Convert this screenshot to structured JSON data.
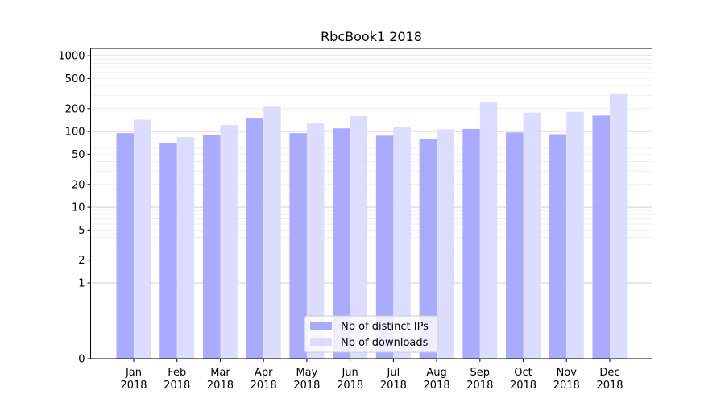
{
  "chart_data": {
    "type": "bar",
    "title": "RbcBook1 2018",
    "xlabel": "",
    "ylabel": "",
    "yscale": "symlog",
    "ylim": [
      0,
      1250
    ],
    "yticks": [
      0,
      1,
      2,
      5,
      10,
      20,
      50,
      100,
      200,
      500,
      1000
    ],
    "ytick_labels": [
      "0",
      "1",
      "2",
      "5",
      "10",
      "20",
      "50",
      "100",
      "200",
      "500",
      "1000"
    ],
    "categories": [
      {
        "month": "Jan",
        "year": "2018"
      },
      {
        "month": "Feb",
        "year": "2018"
      },
      {
        "month": "Mar",
        "year": "2018"
      },
      {
        "month": "Apr",
        "year": "2018"
      },
      {
        "month": "May",
        "year": "2018"
      },
      {
        "month": "Jun",
        "year": "2018"
      },
      {
        "month": "Jul",
        "year": "2018"
      },
      {
        "month": "Aug",
        "year": "2018"
      },
      {
        "month": "Sep",
        "year": "2018"
      },
      {
        "month": "Oct",
        "year": "2018"
      },
      {
        "month": "Nov",
        "year": "2018"
      },
      {
        "month": "Dec",
        "year": "2018"
      }
    ],
    "series": [
      {
        "name": "Nb of distinct IPs",
        "color": "#aaaaff",
        "values": [
          95,
          70,
          90,
          148,
          95,
          110,
          88,
          80,
          108,
          97,
          92,
          162
        ]
      },
      {
        "name": "Nb of downloads",
        "color": "#ddddff",
        "values": [
          143,
          84,
          122,
          212,
          130,
          160,
          116,
          107,
          245,
          178,
          182,
          310
        ]
      }
    ],
    "grid": true,
    "legend_position": "bottom-center"
  }
}
